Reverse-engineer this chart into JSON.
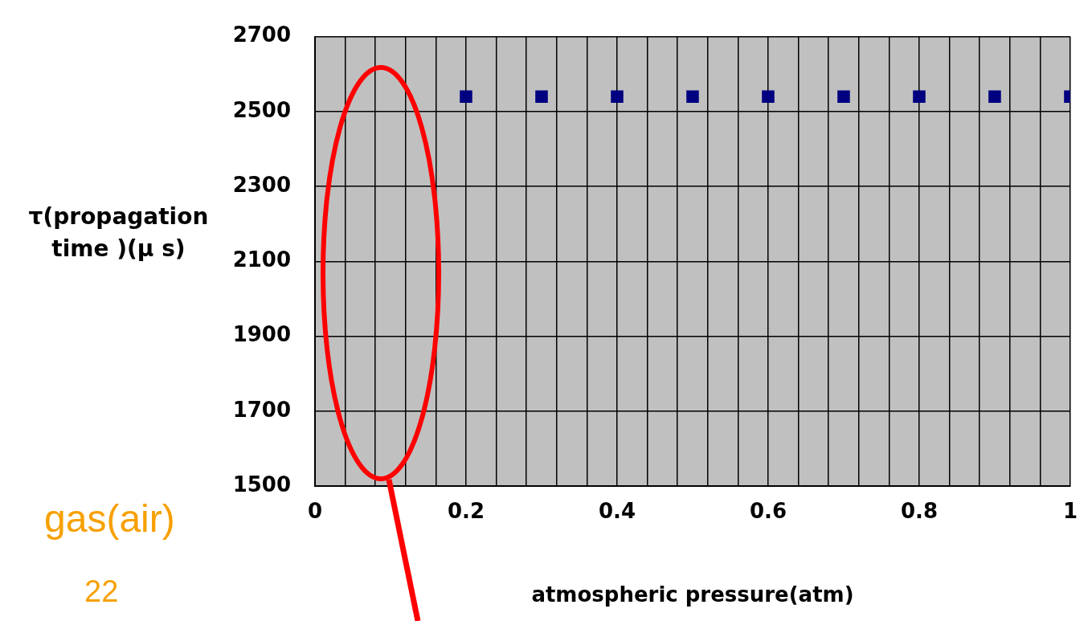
{
  "chart_data": {
    "type": "scatter",
    "xlabel": "atmospheric pressure(atm)",
    "ylabel": "τ(propagation time )(μ s)",
    "annotations": [
      "gas(air)",
      "22"
    ],
    "x": [
      0.2,
      0.3,
      0.4,
      0.5,
      0.6,
      0.7,
      0.8,
      0.9,
      1.0
    ],
    "series": [
      {
        "color": "#000080",
        "values": [
          2540,
          2540,
          2540,
          2540,
          2540,
          2540,
          2540,
          2540,
          2540
        ]
      }
    ],
    "xlim": [
      0,
      1
    ],
    "xticks": [
      0,
      {
        "value": 0.04,
        "label": null
      },
      {
        "value": 0.08,
        "label": null
      },
      {
        "value": 0.12,
        "label": null
      },
      {
        "value": 0.16,
        "label": null
      },
      0.2,
      {
        "value": 0.24,
        "label": null
      },
      {
        "value": 0.28,
        "label": null
      },
      {
        "value": 0.32,
        "label": null
      },
      {
        "value": 0.36,
        "label": null
      },
      0.4,
      {
        "value": 0.44,
        "label": null
      },
      {
        "value": 0.48,
        "label": null
      },
      {
        "value": 0.52,
        "label": null
      },
      {
        "value": 0.56,
        "label": null
      },
      0.6,
      {
        "value": 0.64,
        "label": null
      },
      {
        "value": 0.68,
        "label": null
      },
      {
        "value": 0.72,
        "label": null
      },
      {
        "value": 0.76,
        "label": null
      },
      0.8,
      {
        "value": 0.84,
        "label": null
      },
      {
        "value": 0.88,
        "label": null
      },
      {
        "value": 0.92,
        "label": null
      },
      {
        "value": 0.96,
        "label": null
      },
      1
    ],
    "ylim": [
      1500,
      2700
    ],
    "yticks": [
      1500,
      1700,
      1900,
      2100,
      2300,
      2500,
      2700
    ],
    "grid": true,
    "legend": false,
    "marker": "square"
  }
}
